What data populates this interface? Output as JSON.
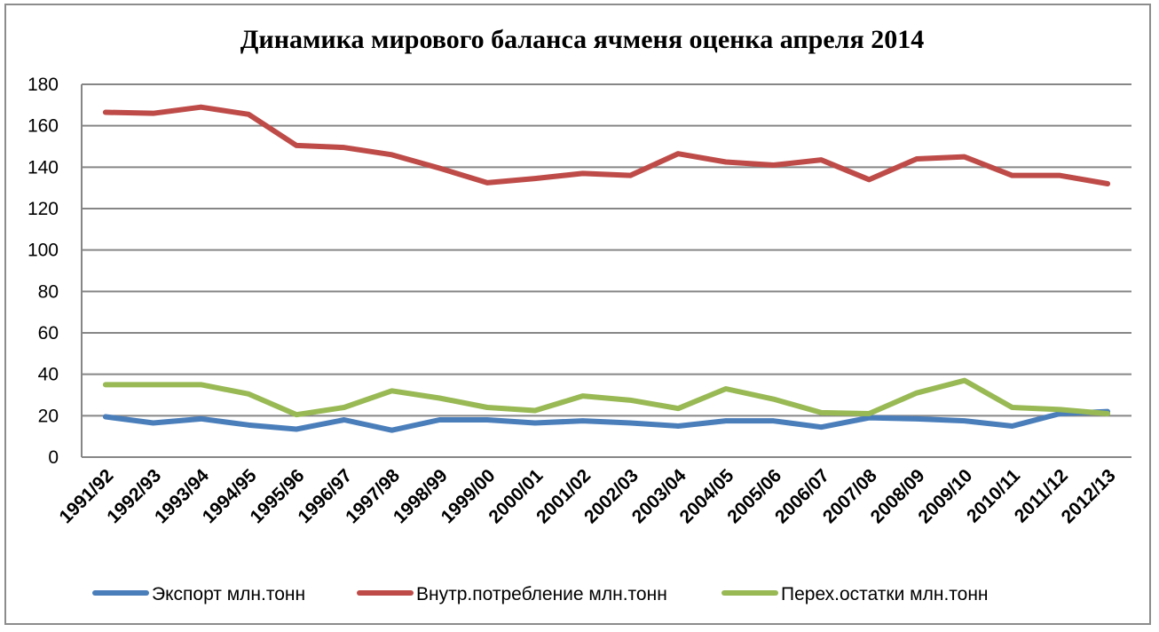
{
  "chart_data": {
    "type": "line",
    "title": "Динамика мирового баланса ячменя оценка апреля 2014",
    "xlabel": "",
    "ylabel": "",
    "ylim": [
      0,
      180
    ],
    "yticks": [
      0,
      20,
      40,
      60,
      80,
      100,
      120,
      140,
      160,
      180
    ],
    "grid": true,
    "legend_position": "bottom",
    "categories": [
      "1991/92",
      "1992/93",
      "1993/94",
      "1994/95",
      "1995/96",
      "1996/97",
      "1997/98",
      "1998/99",
      "1999/00",
      "2000/01",
      "2001/02",
      "2002/03",
      "2003/04",
      "2004/05",
      "2005/06",
      "2006/07",
      "2007/08",
      "2008/09",
      "2009/10",
      "2010/11",
      "2011/12",
      "2012/13"
    ],
    "series": [
      {
        "name": "Экспорт млн.тонн",
        "color": "#4a7ebb",
        "values": [
          19.5,
          16.5,
          18.5,
          15.5,
          13.5,
          18,
          13,
          18,
          18,
          16.5,
          17.5,
          16.5,
          15,
          17.5,
          17.5,
          14.5,
          19,
          18.5,
          17.5,
          15,
          21,
          22
        ]
      },
      {
        "name": "Внутр.потребление млн.тонн",
        "color": "#be4b48",
        "values": [
          166.5,
          166,
          169,
          165.5,
          150.5,
          149.5,
          146,
          139.5,
          132.5,
          134.5,
          137,
          136,
          146.5,
          142.5,
          141,
          143.5,
          134,
          144,
          145,
          136,
          136,
          132
        ]
      },
      {
        "name": "Перех.остатки млн.тонн",
        "color": "#98b954",
        "values": [
          35,
          35,
          35,
          30.5,
          20.5,
          24,
          32,
          28.5,
          24,
          22.5,
          29.5,
          27.5,
          23.5,
          33,
          28,
          21.5,
          21,
          31,
          37,
          24,
          23,
          21
        ]
      }
    ]
  }
}
